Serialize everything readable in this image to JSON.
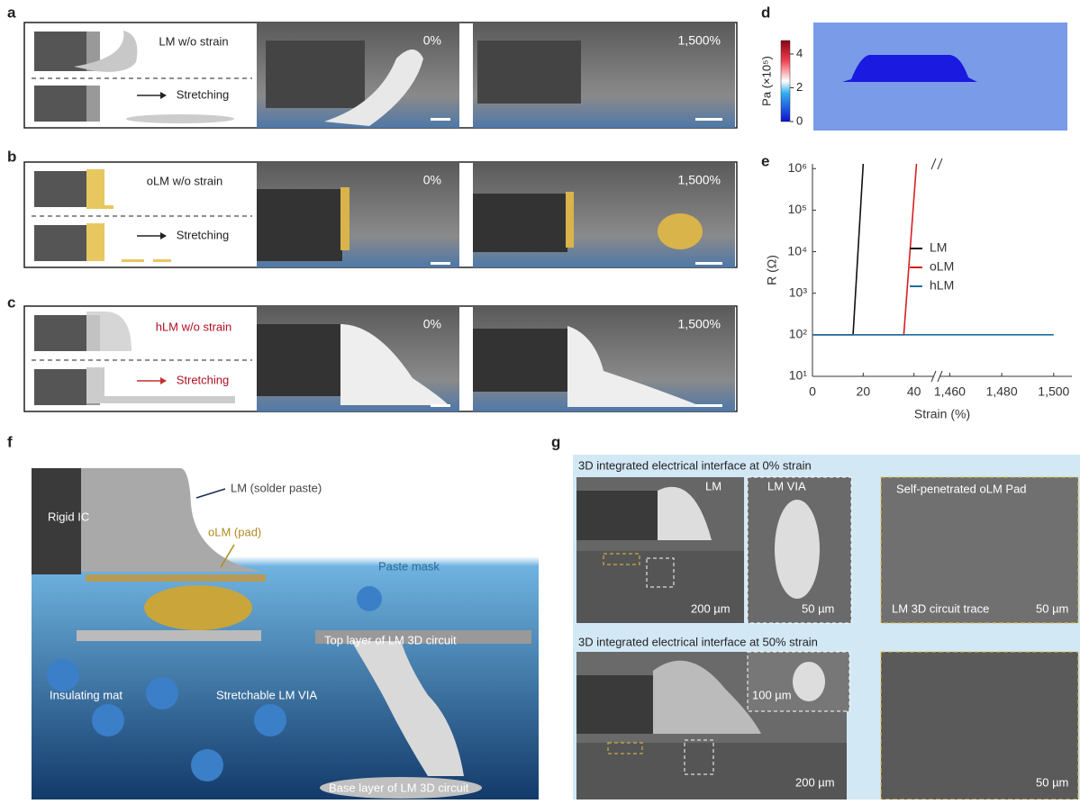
{
  "panels": {
    "a": {
      "label": "a",
      "schematic_top": "LM w/o strain",
      "schematic_bottom": "Stretching",
      "image_left": "0%",
      "image_right": "1,500%"
    },
    "b": {
      "label": "b",
      "schematic_top": "oLM w/o strain",
      "schematic_bottom": "Stretching",
      "image_left": "0%",
      "image_right": "1,500%"
    },
    "c": {
      "label": "c",
      "schematic_top": "hLM w/o strain",
      "schematic_bottom": "Stretching",
      "image_left": "0%",
      "image_right": "1,500%"
    },
    "d": {
      "label": "d",
      "colorbar_title": "Pa (×10⁵)",
      "colorbar_lim": [
        0,
        4.8
      ],
      "colorbar_ticks": [
        0,
        2,
        4
      ]
    },
    "e": {
      "label": "e"
    },
    "f": {
      "label": "f",
      "labels": [
        "LM (solder paste)",
        "Rigid IC",
        "oLM (pad)",
        "Paste mask",
        "Top layer of LM 3D circuit",
        "Insulating mat",
        "Stretchable LM VIA",
        "Base layer of LM 3D circuit"
      ]
    },
    "g": {
      "label": "g",
      "top": {
        "title": "3D integrated electrical interface at 0% strain",
        "labels": [
          "LM",
          "LM VIA",
          "Self-penetrated oLM Pad",
          "200 µm",
          "50 µm",
          "LM 3D circuit trace",
          "50 µm"
        ]
      },
      "bottom": {
        "title": "3D integrated electrical interface at 50% strain",
        "labels": [
          "100 µm",
          "200 µm",
          "50 µm"
        ]
      }
    }
  },
  "chart_data": {
    "type": "line",
    "x_label": "Strain (%)",
    "y_label": "R (Ω)",
    "log_y": true,
    "legend": "center right",
    "xlim": [
      0,
      1507
    ],
    "xbreak": [
      49,
      1455
    ],
    "xticks": [
      0,
      20,
      40,
      {
        "value": 1460,
        "label": "1,460"
      },
      {
        "value": 1480,
        "label": "1,480"
      },
      {
        "value": 1500,
        "label": "1,500"
      }
    ],
    "ylim": [
      10,
      1300000
    ],
    "yticks": [
      {
        "value": 10,
        "label": "10¹"
      },
      {
        "value": 100,
        "label": "10²"
      },
      {
        "value": 1000,
        "label": "10³"
      },
      {
        "value": 10000,
        "label": "10⁴"
      },
      {
        "value": 100000,
        "label": "10⁵"
      },
      {
        "value": 1000000,
        "label": "10⁶"
      }
    ],
    "series": [
      {
        "name": "LM",
        "color": "#111111",
        "x": [
          0,
          16,
          20
        ],
        "values": [
          100,
          100,
          1300000
        ]
      },
      {
        "name": "oLM",
        "color": "#d62020",
        "x": [
          0,
          36,
          41
        ],
        "values": [
          100,
          100,
          1300000
        ]
      },
      {
        "name": "hLM",
        "color": "#1f6fa0",
        "x": [
          0,
          1500
        ],
        "values": [
          100,
          100
        ]
      }
    ]
  }
}
